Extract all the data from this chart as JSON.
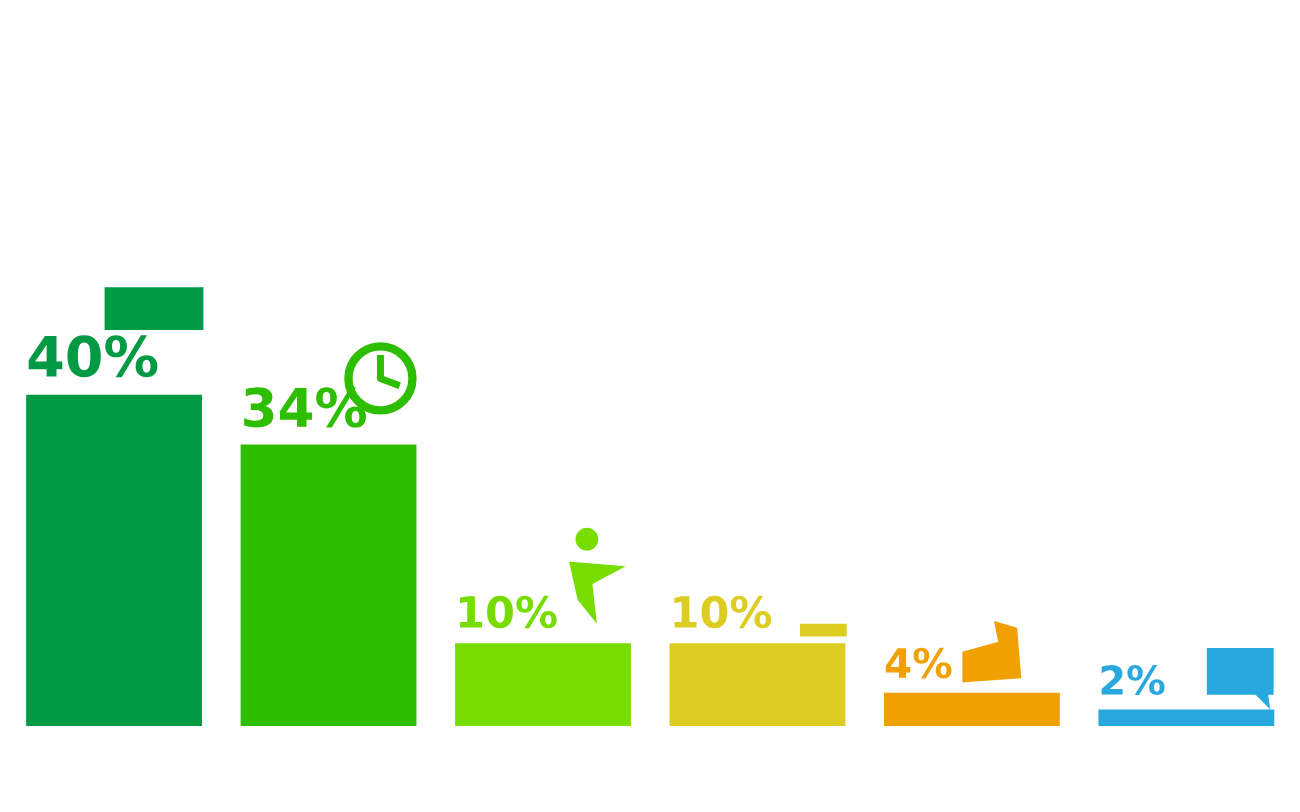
{
  "chart_data": {
    "type": "bar",
    "categories": [
      null,
      null,
      null,
      null,
      null,
      null
    ],
    "values": [
      40,
      34,
      10,
      10,
      4,
      2
    ],
    "colors": [
      "#009a44",
      "#2dbe00",
      "#77dd00",
      "#ddcc22",
      "#f0a000",
      "#29a8e0"
    ],
    "data_labels": true,
    "value_labels": [
      "40%",
      "34%",
      "10%",
      "10%",
      "4%",
      "2%"
    ],
    "grid": false,
    "legend": false
  }
}
